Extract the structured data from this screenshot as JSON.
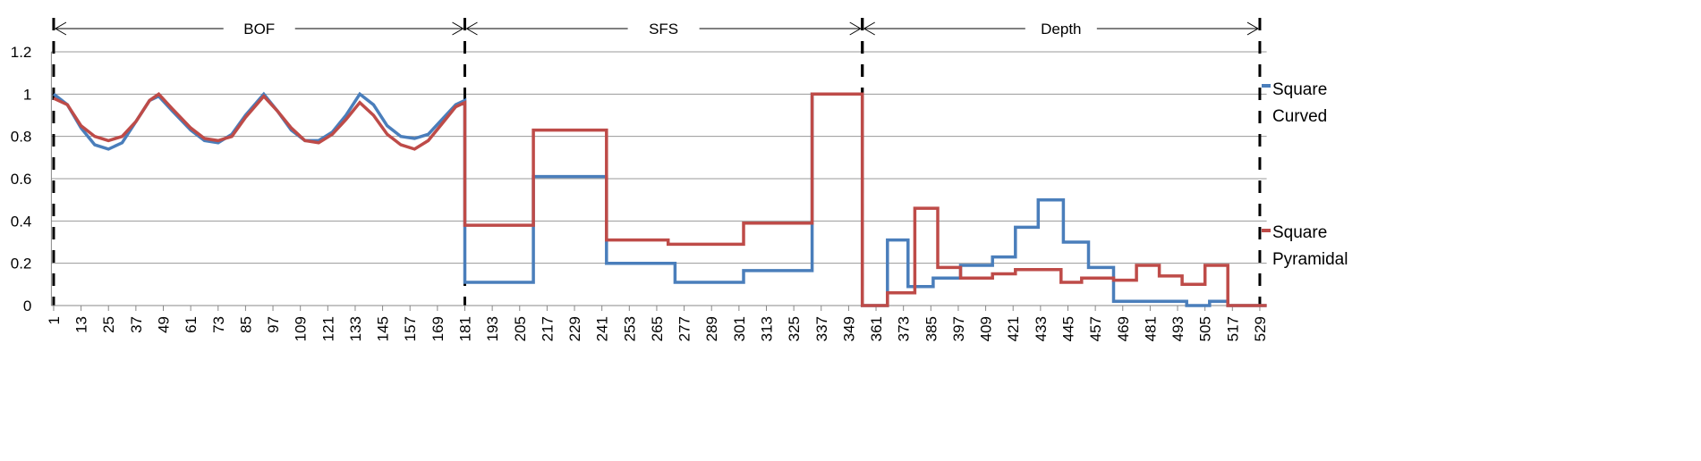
{
  "chart_data": {
    "type": "line",
    "sections": [
      {
        "label": "BOF",
        "start": 1,
        "end": 181
      },
      {
        "label": "SFS",
        "start": 181,
        "end": 355
      },
      {
        "label": "Depth",
        "start": 355,
        "end": 529
      }
    ],
    "series": [
      {
        "name": "Square Curved",
        "color": "#4a7ebb",
        "x": [
          1,
          7,
          13,
          19,
          25,
          31,
          37,
          43,
          47,
          53,
          61,
          67,
          73,
          79,
          85,
          93,
          99,
          105,
          111,
          117,
          123,
          129,
          135,
          141,
          147,
          153,
          159,
          165,
          171,
          177,
          181,
          181,
          211,
          211,
          243,
          243,
          273,
          273,
          303,
          303,
          333,
          333,
          355,
          355,
          366,
          366,
          375,
          375,
          386,
          386,
          398,
          398,
          412,
          412,
          422,
          422,
          432,
          432,
          443,
          443,
          454,
          454,
          465,
          465,
          497,
          497,
          507,
          507,
          515,
          515,
          532
        ],
        "values": [
          1.0,
          0.95,
          0.84,
          0.76,
          0.74,
          0.77,
          0.87,
          0.97,
          0.99,
          0.92,
          0.83,
          0.78,
          0.77,
          0.81,
          0.9,
          1.0,
          0.92,
          0.83,
          0.78,
          0.78,
          0.82,
          0.9,
          1.0,
          0.95,
          0.85,
          0.8,
          0.79,
          0.81,
          0.88,
          0.95,
          0.97,
          0.11,
          0.11,
          0.61,
          0.61,
          0.2,
          0.2,
          0.11,
          0.11,
          0.165,
          0.165,
          1.0,
          1.0,
          0,
          0,
          0.31,
          0.31,
          0.09,
          0.09,
          0.13,
          0.13,
          0.19,
          0.19,
          0.23,
          0.23,
          0.37,
          0.37,
          0.5,
          0.5,
          0.3,
          0.3,
          0.18,
          0.18,
          0.02,
          0.02,
          0,
          0,
          0.02,
          0.02,
          0,
          0
        ]
      },
      {
        "name": "Square Pyramidal",
        "color": "#be4b48",
        "x": [
          1,
          7,
          13,
          19,
          25,
          31,
          37,
          43,
          47,
          53,
          61,
          67,
          73,
          79,
          85,
          93,
          99,
          105,
          111,
          117,
          123,
          129,
          135,
          141,
          147,
          153,
          159,
          165,
          171,
          177,
          181,
          181,
          211,
          211,
          243,
          243,
          270,
          270,
          303,
          303,
          333,
          333,
          355,
          355,
          366,
          366,
          378,
          378,
          388,
          388,
          398,
          398,
          412,
          412,
          422,
          422,
          442,
          442,
          451,
          451,
          465,
          465,
          475,
          475,
          485,
          485,
          495,
          495,
          505,
          505,
          515,
          515,
          532
        ],
        "values": [
          0.98,
          0.95,
          0.85,
          0.8,
          0.78,
          0.8,
          0.87,
          0.97,
          1.0,
          0.93,
          0.84,
          0.79,
          0.78,
          0.8,
          0.89,
          0.99,
          0.92,
          0.84,
          0.78,
          0.77,
          0.81,
          0.88,
          0.96,
          0.9,
          0.81,
          0.76,
          0.74,
          0.78,
          0.86,
          0.94,
          0.96,
          0.38,
          0.38,
          0.83,
          0.83,
          0.31,
          0.31,
          0.29,
          0.29,
          0.39,
          0.39,
          1.0,
          1.0,
          0,
          0,
          0.06,
          0.06,
          0.46,
          0.46,
          0.18,
          0.18,
          0.13,
          0.13,
          0.15,
          0.15,
          0.17,
          0.17,
          0.11,
          0.11,
          0.13,
          0.13,
          0.12,
          0.12,
          0.19,
          0.19,
          0.14,
          0.14,
          0.1,
          0.1,
          0.19,
          0.19,
          0,
          0
        ]
      }
    ],
    "xlim": [
      0,
      532
    ],
    "xticks": [
      1,
      13,
      25,
      37,
      49,
      61,
      73,
      85,
      97,
      109,
      121,
      133,
      145,
      157,
      169,
      181,
      193,
      205,
      217,
      229,
      241,
      253,
      265,
      277,
      289,
      301,
      313,
      325,
      337,
      349,
      361,
      373,
      385,
      397,
      409,
      421,
      433,
      445,
      457,
      469,
      481,
      493,
      505,
      517,
      529
    ],
    "ylim": [
      0,
      1.2
    ],
    "yticks": [
      0,
      0.2,
      0.4,
      0.6,
      0.8,
      1,
      1.2
    ],
    "grid": true
  }
}
